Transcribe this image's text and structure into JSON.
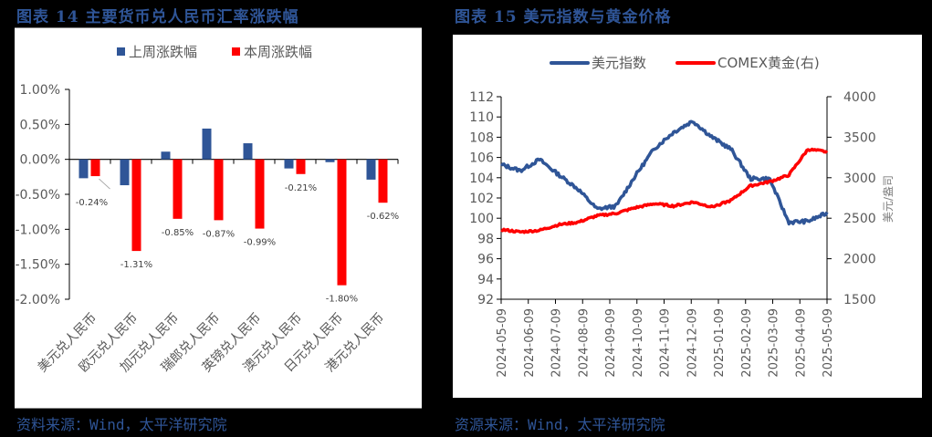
{
  "figures": [
    {
      "title": "图表 14 主要货币兑人民币汇率涨跌幅",
      "source": "资料来源：Wind，太平洋研究院"
    },
    {
      "title": "图表 15 美元指数与黄金价格",
      "source": "资源来源：Wind，太平洋研究院"
    }
  ],
  "colors": {
    "blue": "#2f5597",
    "red": "#ff0000",
    "axis_text": "#595959",
    "title_blue": "#2f5597"
  },
  "chart_data": [
    {
      "type": "bar",
      "title": "主要货币兑人民币汇率涨跌幅",
      "categories": [
        "美元兑人民币",
        "欧元兑人民币",
        "加元兑人民币",
        "瑞郎兑人民币",
        "英镑兑人民币",
        "澳元兑人民币",
        "日元兑人民币",
        "港元兑人民币"
      ],
      "series": [
        {
          "name": "上周涨跌幅",
          "color": "#2f5597",
          "values": [
            -0.27,
            -0.37,
            0.11,
            0.44,
            0.23,
            -0.13,
            -0.04,
            -0.29
          ]
        },
        {
          "name": "本周涨跌幅",
          "color": "#ff0000",
          "values": [
            -0.24,
            -1.31,
            -0.85,
            -0.87,
            -0.99,
            -0.21,
            -1.8,
            -0.62
          ]
        }
      ],
      "data_labels": [
        "-0.24%",
        "-1.31%",
        "-0.85%",
        "-0.87%",
        "-0.99%",
        "-0.21%",
        "-1.80%",
        "-0.62%"
      ],
      "yticks": [
        "1.00%",
        "0.50%",
        "0.00%",
        "-0.50%",
        "-1.00%",
        "-1.50%",
        "-2.00%"
      ],
      "ylim": [
        -2.0,
        1.0
      ],
      "xlabel": "",
      "ylabel": "",
      "legend_position": "top",
      "grid": false
    },
    {
      "type": "line",
      "title": "美元指数与黄金价格",
      "x_ticks": [
        "2024-05-09",
        "2024-06-09",
        "2024-07-09",
        "2024-08-09",
        "2024-09-09",
        "2024-10-09",
        "2024-11-09",
        "2024-12-09",
        "2025-01-09",
        "2025-02-09",
        "2025-03-09",
        "2025-04-09",
        "2025-05-09"
      ],
      "series": [
        {
          "name": "美元指数",
          "axis": "left",
          "color": "#2f5597",
          "values": [
            105.3,
            104.7,
            105.8,
            104.3,
            102.9,
            100.9,
            101.2,
            104.2,
            106.9,
            108.5,
            109.6,
            108.0,
            106.8,
            103.9,
            103.9,
            99.6,
            99.7,
            100.5
          ]
        },
        {
          "name": "COMEX黄金(右)",
          "axis": "right",
          "color": "#ff0000",
          "values": [
            2360,
            2330,
            2350,
            2420,
            2450,
            2530,
            2560,
            2630,
            2680,
            2650,
            2700,
            2640,
            2720,
            2900,
            2950,
            3030,
            3350,
            3320
          ]
        }
      ],
      "y_left": {
        "ticks": [
          "112",
          "110",
          "108",
          "106",
          "104",
          "102",
          "100",
          "98",
          "96",
          "94",
          "92"
        ],
        "range": [
          92,
          112
        ]
      },
      "y_right": {
        "ticks": [
          "4000",
          "3500",
          "3000",
          "2500",
          "2000",
          "1500"
        ],
        "range": [
          1500,
          4000
        ],
        "label": "美元/盎司"
      },
      "legend_position": "top",
      "grid": false
    }
  ]
}
